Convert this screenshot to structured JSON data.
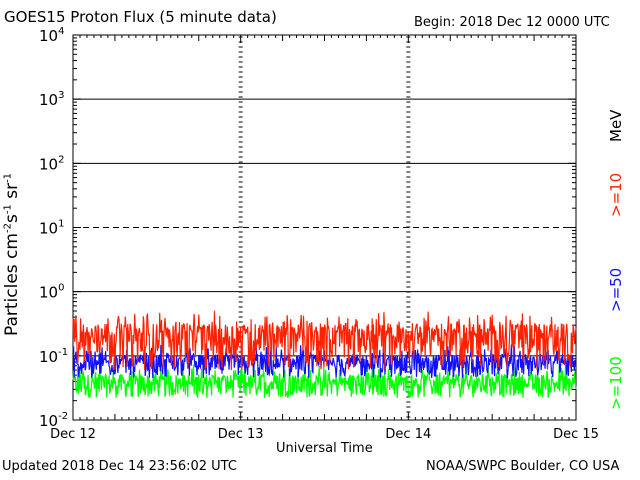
{
  "header": {
    "title": "GOES15 Proton Flux (5 minute data)",
    "begin": "Begin: 2018 Dec 12 0000 UTC"
  },
  "footer": {
    "updated": "Updated 2018 Dec 14 23:56:02 UTC",
    "credit": "NOAA/SWPC Boulder, CO USA"
  },
  "chart_data": {
    "type": "line",
    "title": "GOES15 Proton Flux (5 minute data)",
    "xlabel": "Universal Time",
    "ylabel_base": "Particles cm",
    "ylabel_sup1": "-2",
    "ylabel_mid1": "s",
    "ylabel_sup2": "-1",
    "ylabel_mid2": "sr",
    "ylabel_sup3": "-1",
    "x_ticks": [
      "Dec 12",
      "Dec 13",
      "Dec 14",
      "Dec 15"
    ],
    "x_range_days": [
      0,
      3
    ],
    "y_scale": "log",
    "ylim": [
      0.01,
      10000
    ],
    "y_ticks": [
      {
        "base": "10",
        "exp": "-2"
      },
      {
        "base": "10",
        "exp": "-1"
      },
      {
        "base": "10",
        "exp": "0"
      },
      {
        "base": "10",
        "exp": "1"
      },
      {
        "base": "10",
        "exp": "2"
      },
      {
        "base": "10",
        "exp": "3"
      },
      {
        "base": "10",
        "exp": "4"
      }
    ],
    "unit_label": "MeV",
    "series": [
      {
        "name": ">=10",
        "color": "#ff2000",
        "typical": 0.19,
        "spread": 0.13
      },
      {
        "name": ">=50",
        "color": "#1010ff",
        "typical": 0.075,
        "spread": 0.03
      },
      {
        "name": ">=100",
        "color": "#00ff00",
        "typical": 0.037,
        "spread": 0.015
      }
    ],
    "reference_lines": [
      {
        "value": 10,
        "style": "dashed"
      },
      {
        "value": 1,
        "style": "solid"
      },
      {
        "value": 100,
        "style": "solid"
      },
      {
        "value": 1000,
        "style": "solid"
      }
    ],
    "threshold_marks": [
      0.1
    ]
  }
}
